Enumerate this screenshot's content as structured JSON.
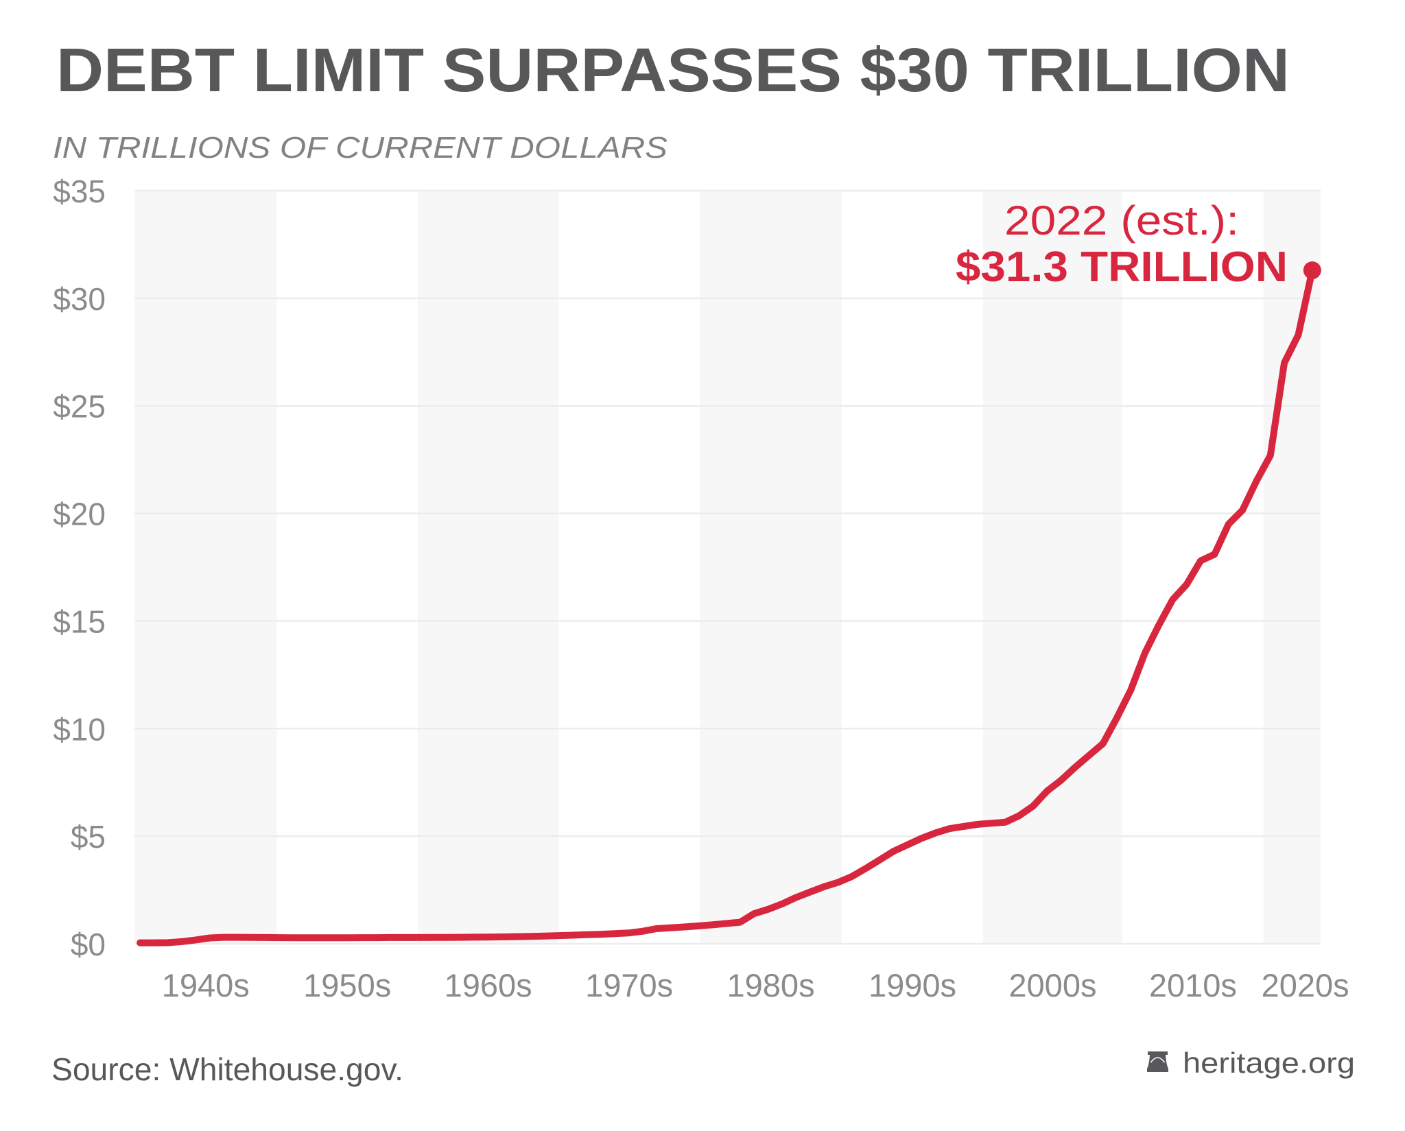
{
  "chart_data": {
    "type": "line",
    "title": "DEBT LIMIT SURPASSES $30 TRILLION",
    "subtitle": "IN TRILLIONS OF CURRENT DOLLARS",
    "xlabel": "",
    "ylabel": "",
    "xlim": [
      1937.6,
      2022.6
    ],
    "ylim": [
      0,
      35
    ],
    "grid": true,
    "legend": "none",
    "yticks": [
      {
        "value": 0,
        "label": "$0"
      },
      {
        "value": 5,
        "label": "$5"
      },
      {
        "value": 10,
        "label": "$10"
      },
      {
        "value": 15,
        "label": "$15"
      },
      {
        "value": 20,
        "label": "$20"
      },
      {
        "value": 25,
        "label": "$25"
      },
      {
        "value": 30,
        "label": "$30"
      },
      {
        "value": 35,
        "label": "$35"
      }
    ],
    "x_bands": [
      {
        "label": "1940s",
        "start": 1937.6,
        "end": 1947.8
      },
      {
        "label": "1950s",
        "start": 1947.8,
        "end": 1957.9
      },
      {
        "label": "1960s",
        "start": 1957.9,
        "end": 1968.0
      },
      {
        "label": "1970s",
        "start": 1968.0,
        "end": 1978.1
      },
      {
        "label": "1980s",
        "start": 1978.1,
        "end": 1988.3
      },
      {
        "label": "1990s",
        "start": 1988.3,
        "end": 1998.4
      },
      {
        "label": "2000s",
        "start": 1998.4,
        "end": 2008.4
      },
      {
        "label": "2010s",
        "start": 2008.4,
        "end": 2018.5
      },
      {
        "label": "2020s",
        "start": 2018.5,
        "end": 2022.6
      }
    ],
    "series": [
      {
        "x": [
          1938,
          1939,
          1940,
          1941,
          1942,
          1943,
          1944,
          1945,
          1946,
          1947,
          1948,
          1949,
          1950,
          1951,
          1952,
          1953,
          1954,
          1955,
          1956,
          1957,
          1958,
          1959,
          1960,
          1961,
          1962,
          1963,
          1964,
          1965,
          1966,
          1967,
          1968,
          1969,
          1970,
          1971,
          1972,
          1973,
          1974,
          1975,
          1976,
          1977,
          1978,
          1979,
          1980,
          1981,
          1982,
          1983,
          1984,
          1985,
          1986,
          1987,
          1988,
          1989,
          1990,
          1991,
          1992,
          1993,
          1994,
          1995,
          1996,
          1997,
          1998,
          1999,
          2000,
          2001,
          2002,
          2003,
          2004,
          2005,
          2006,
          2007,
          2008,
          2009,
          2010,
          2011,
          2012,
          2013,
          2014,
          2015,
          2016,
          2017,
          2018,
          2019,
          2020,
          2021,
          2022
        ],
        "y": [
          0.045,
          0.045,
          0.05,
          0.1,
          0.18,
          0.27,
          0.3,
          0.3,
          0.295,
          0.29,
          0.285,
          0.28,
          0.28,
          0.28,
          0.28,
          0.28,
          0.285,
          0.285,
          0.29,
          0.29,
          0.29,
          0.295,
          0.295,
          0.3,
          0.305,
          0.31,
          0.32,
          0.33,
          0.34,
          0.36,
          0.38,
          0.4,
          0.42,
          0.44,
          0.47,
          0.5,
          0.58,
          0.7,
          0.74,
          0.78,
          0.83,
          0.88,
          0.94,
          1.0,
          1.4,
          1.6,
          1.85,
          2.15,
          2.4,
          2.65,
          2.85,
          3.12,
          3.5,
          3.9,
          4.3,
          4.6,
          4.9,
          5.15,
          5.35,
          5.45,
          5.55,
          5.6,
          5.65,
          5.95,
          6.4,
          7.1,
          7.6,
          8.2,
          8.75,
          9.3,
          10.5,
          11.8,
          13.5,
          14.8,
          16.0,
          16.7,
          17.8,
          18.1,
          19.5,
          20.15,
          21.5,
          22.7,
          27.0,
          28.3,
          31.3
        ]
      }
    ],
    "annotation": {
      "year": 2022,
      "value": 31.3,
      "line1": "2022 (est.):",
      "line2": "$31.3 TRILLION"
    }
  },
  "footer": {
    "source": "Source: Whitehouse.gov.",
    "brand": "heritage.org",
    "brand_icon": "liberty-bell-icon"
  },
  "colors": {
    "line": "#d7263d",
    "title": "#58585a",
    "subtitle": "#808285",
    "tick": "#8a8b8d",
    "band": "#f7f7f7",
    "grid": "#ececec",
    "background": "#ffffff"
  }
}
